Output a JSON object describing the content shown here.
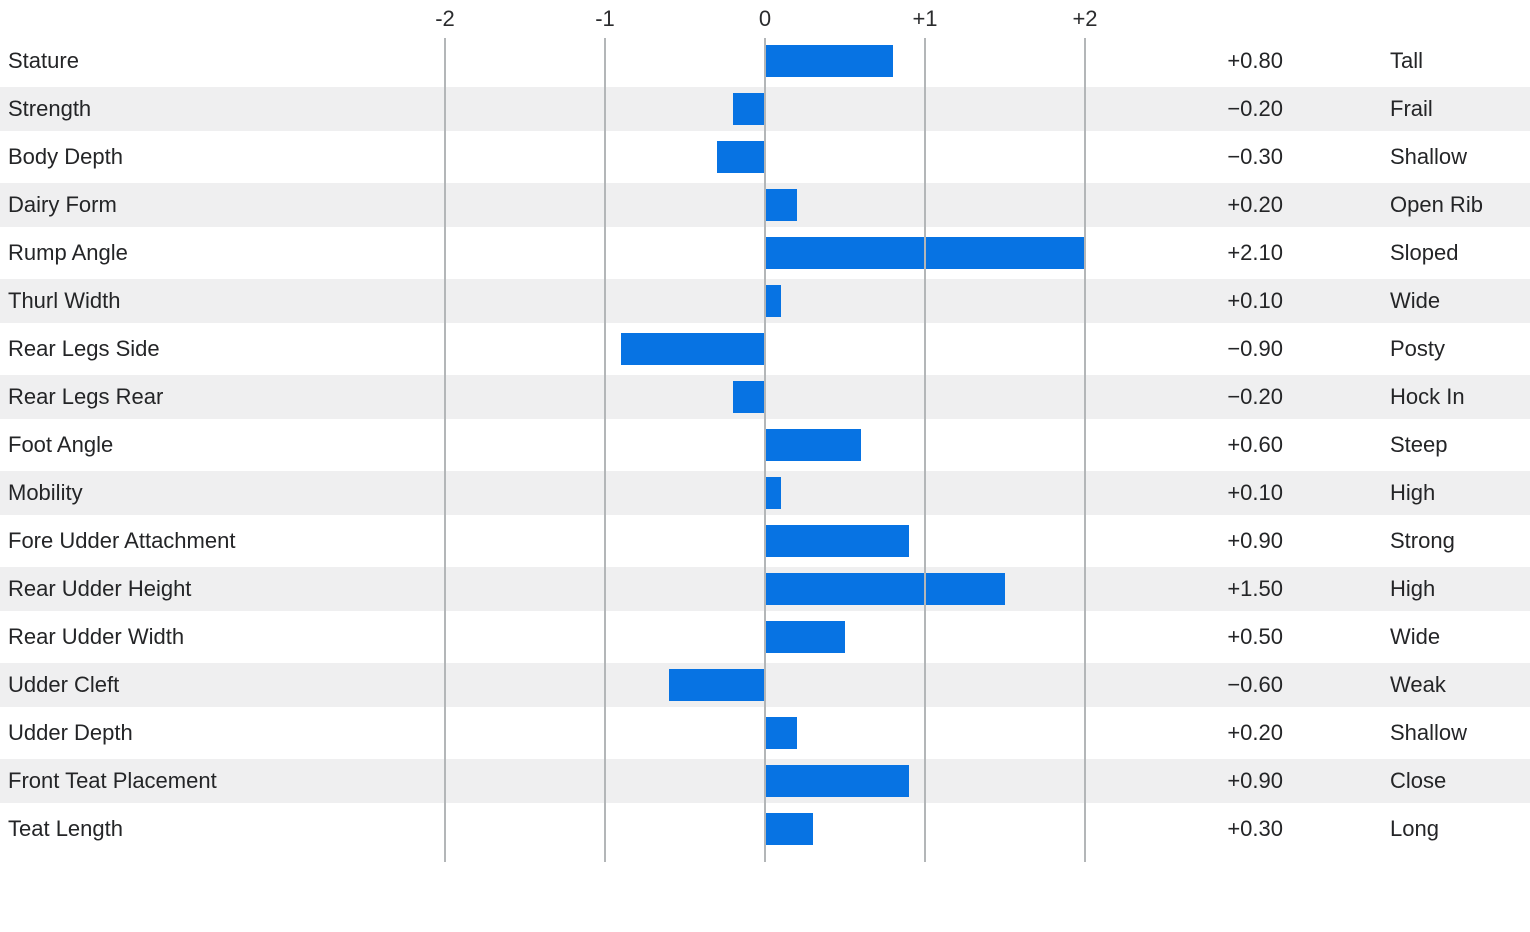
{
  "chart_data": {
    "type": "bar",
    "orientation": "horizontal",
    "title": "",
    "x_axis": {
      "tick_labels": [
        "-2",
        "-1",
        "0",
        "+1",
        "+2"
      ],
      "tick_values": [
        -2,
        -1,
        0,
        1,
        2
      ],
      "xlim": [
        -2,
        2
      ],
      "grid": true,
      "note": "bars longer than xlim are clipped at the axis limit"
    },
    "colors": {
      "bar": "#0773e3",
      "stripe": "#efeff0",
      "gridline": "#b3b6b8",
      "text": "#242527"
    },
    "rows": [
      {
        "trait": "Stature",
        "value": 0.8,
        "value_label": "+0.80",
        "descriptor": "Tall"
      },
      {
        "trait": "Strength",
        "value": -0.2,
        "value_label": "−0.20",
        "descriptor": "Frail"
      },
      {
        "trait": "Body Depth",
        "value": -0.3,
        "value_label": "−0.30",
        "descriptor": "Shallow"
      },
      {
        "trait": "Dairy Form",
        "value": 0.2,
        "value_label": "+0.20",
        "descriptor": "Open Rib"
      },
      {
        "trait": "Rump Angle",
        "value": 2.1,
        "value_label": "+2.10",
        "descriptor": "Sloped"
      },
      {
        "trait": "Thurl Width",
        "value": 0.1,
        "value_label": "+0.10",
        "descriptor": "Wide"
      },
      {
        "trait": "Rear Legs Side",
        "value": -0.9,
        "value_label": "−0.90",
        "descriptor": "Posty"
      },
      {
        "trait": "Rear Legs Rear",
        "value": -0.2,
        "value_label": "−0.20",
        "descriptor": "Hock In"
      },
      {
        "trait": "Foot Angle",
        "value": 0.6,
        "value_label": "+0.60",
        "descriptor": "Steep"
      },
      {
        "trait": "Mobility",
        "value": 0.1,
        "value_label": "+0.10",
        "descriptor": "High"
      },
      {
        "trait": "Fore Udder Attachment",
        "value": 0.9,
        "value_label": "+0.90",
        "descriptor": "Strong"
      },
      {
        "trait": "Rear Udder Height",
        "value": 1.5,
        "value_label": "+1.50",
        "descriptor": "High"
      },
      {
        "trait": "Rear Udder Width",
        "value": 0.5,
        "value_label": "+0.50",
        "descriptor": "Wide"
      },
      {
        "trait": "Udder Cleft",
        "value": -0.6,
        "value_label": "−0.60",
        "descriptor": "Weak"
      },
      {
        "trait": "Udder Depth",
        "value": 0.2,
        "value_label": "+0.20",
        "descriptor": "Shallow"
      },
      {
        "trait": "Front Teat Placement",
        "value": 0.9,
        "value_label": "+0.90",
        "descriptor": "Close"
      },
      {
        "trait": "Teat Length",
        "value": 0.3,
        "value_label": "+0.30",
        "descriptor": "Long"
      }
    ]
  }
}
